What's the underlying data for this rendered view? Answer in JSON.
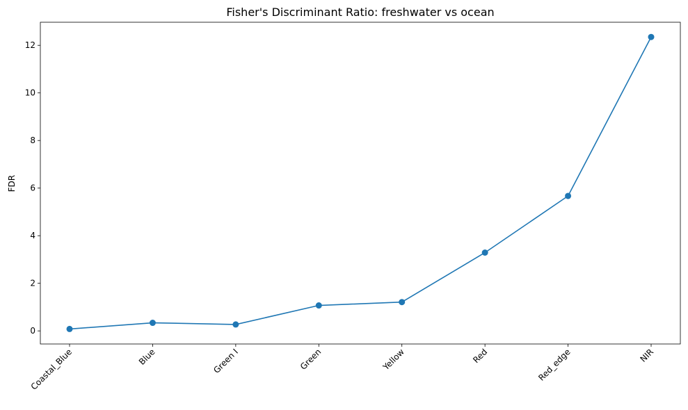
{
  "chart_data": {
    "type": "line",
    "title": "Fisher's Discriminant Ratio: freshwater vs ocean",
    "xlabel": "",
    "ylabel": "FDR",
    "categories": [
      "Coastal_Blue",
      "Blue",
      "Green I",
      "Green",
      "Yellow",
      "Red",
      "Red_edge",
      "NIR"
    ],
    "series": [
      {
        "values": [
          0.08,
          0.34,
          0.27,
          1.07,
          1.21,
          3.29,
          5.67,
          12.35
        ]
      }
    ],
    "ylim": [
      -0.55,
      12.97
    ],
    "yticks": [
      0,
      2,
      4,
      6,
      8,
      10,
      12
    ],
    "grid": false,
    "legend": "none",
    "colors": {
      "series": "#1f77b4",
      "axis": "#000000"
    }
  }
}
